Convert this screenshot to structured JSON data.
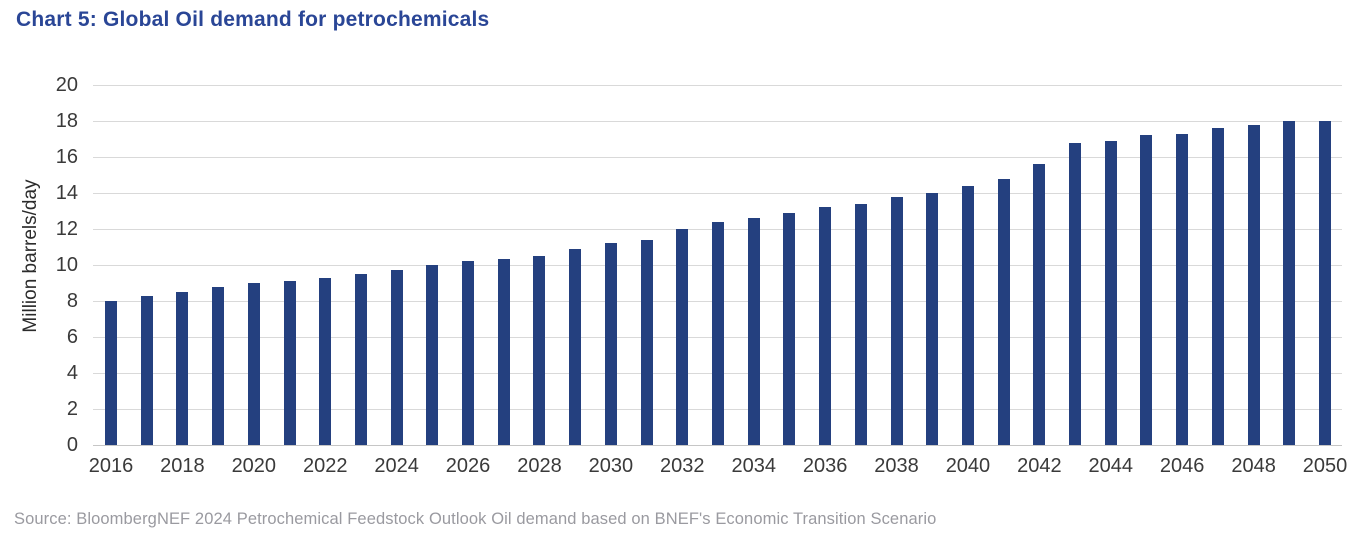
{
  "title": "Chart 5: Global Oil demand for petrochemicals",
  "source": "Source: BloombergNEF 2024 Petrochemical Feedstock Outlook Oil demand based on BNEF's Economic Transition Scenario",
  "colors": {
    "bar": "#24407f",
    "title_text": "#2a4696",
    "gridline": "#d9d9d9",
    "axis_text": "#3a3a3a",
    "source_text": "#9a9aa0"
  },
  "chart_data": {
    "type": "bar",
    "title": "Chart 5: Global Oil demand for petrochemicals",
    "xlabel": "",
    "ylabel": "Million barrels/day",
    "ylim": [
      0,
      20
    ],
    "ytick_step": 2,
    "ytick_labels": [
      "0",
      "2",
      "4",
      "6",
      "8",
      "10",
      "12",
      "14",
      "16",
      "18",
      "20"
    ],
    "xtick_every": 2,
    "xtick_labels": [
      "2016",
      "2018",
      "2020",
      "2022",
      "2024",
      "2026",
      "2028",
      "2030",
      "2032",
      "2034",
      "2036",
      "2038",
      "2040",
      "2042",
      "2044",
      "2046",
      "2048",
      "2050"
    ],
    "grid": "horizontal",
    "legend": "none",
    "bar_color": "#24407f",
    "categories": [
      2016,
      2017,
      2018,
      2019,
      2020,
      2021,
      2022,
      2023,
      2024,
      2025,
      2026,
      2027,
      2028,
      2029,
      2030,
      2031,
      2032,
      2033,
      2034,
      2035,
      2036,
      2037,
      2038,
      2039,
      2040,
      2041,
      2042,
      2043,
      2044,
      2045,
      2046,
      2047,
      2048,
      2049,
      2050
    ],
    "values": [
      8.0,
      8.3,
      8.5,
      8.8,
      9.0,
      9.1,
      9.3,
      9.5,
      9.7,
      10.0,
      10.2,
      10.35,
      10.5,
      10.9,
      11.2,
      11.4,
      12.0,
      12.4,
      12.6,
      12.9,
      13.2,
      13.4,
      13.8,
      14.0,
      14.4,
      14.8,
      15.6,
      16.8,
      16.9,
      17.2,
      17.3,
      17.6,
      17.8,
      18.0,
      18.0
    ]
  }
}
